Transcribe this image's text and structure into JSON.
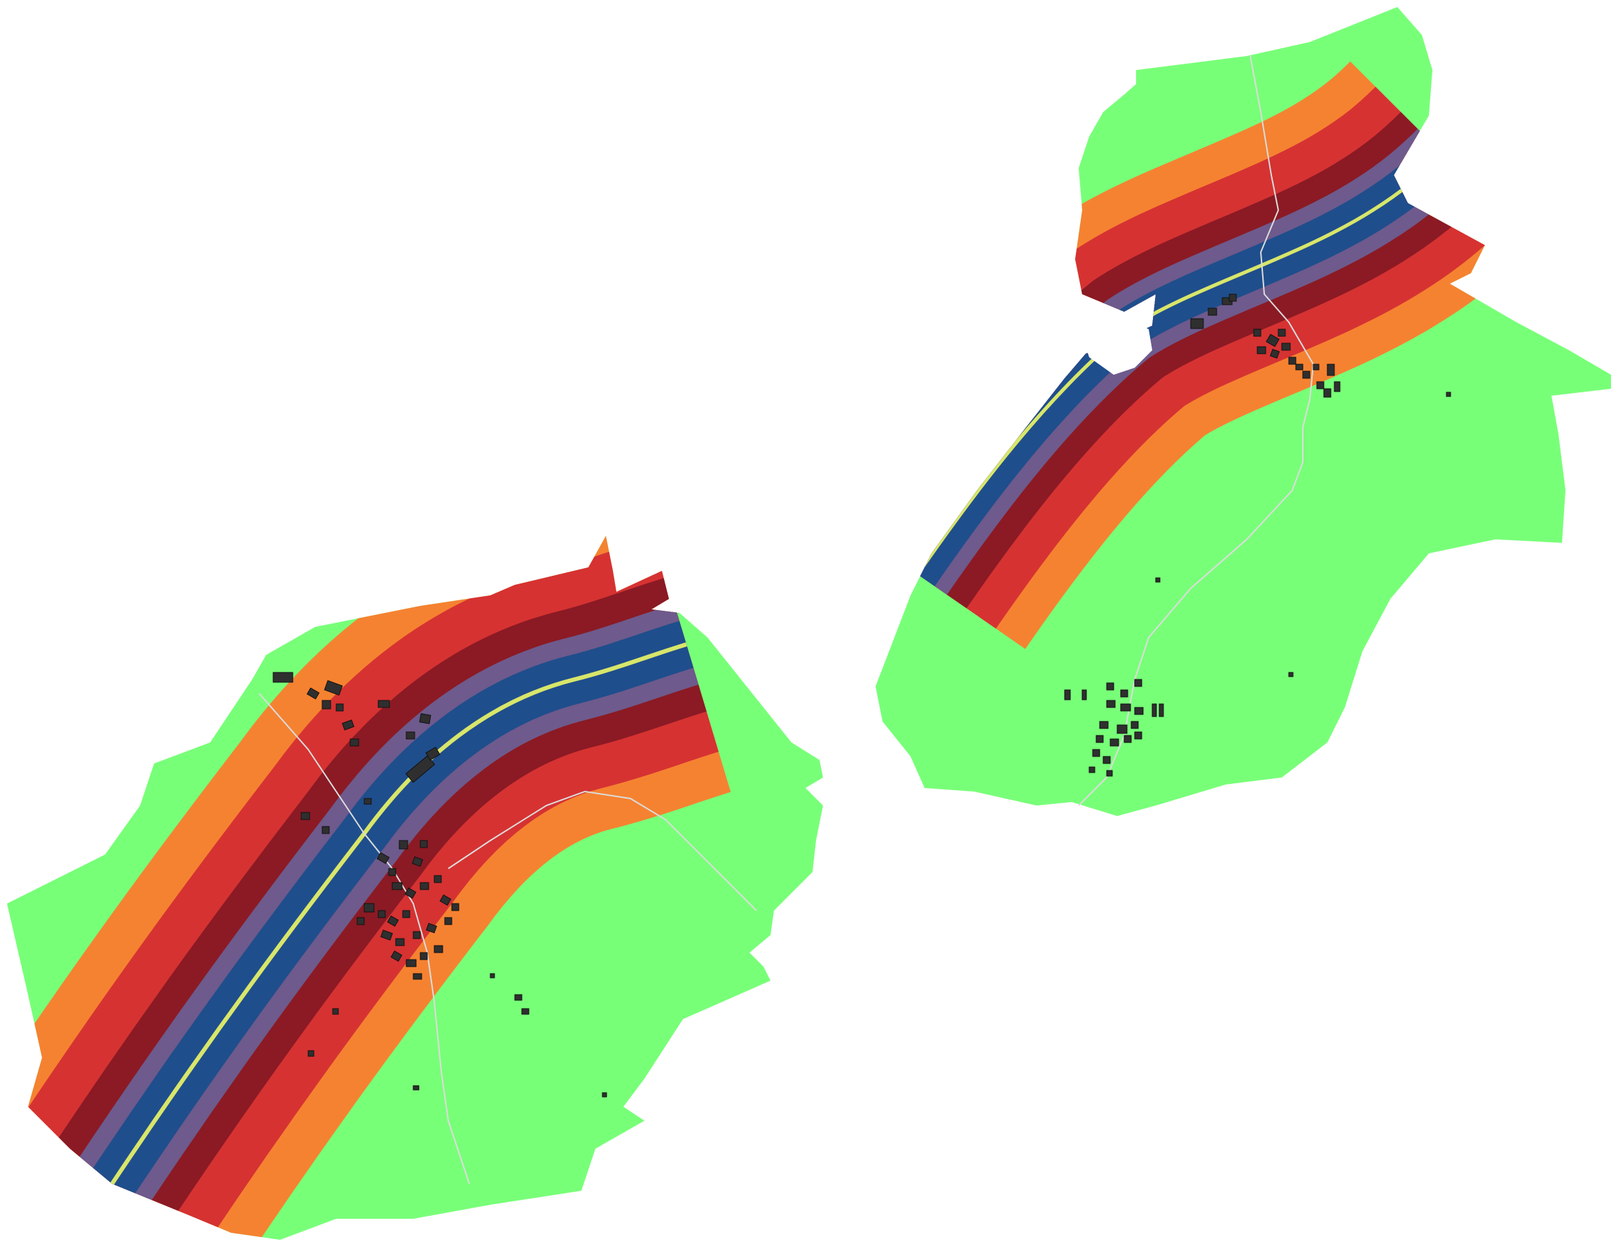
{
  "map": {
    "kind": "road noise exposure map",
    "background": "#ffffff",
    "colors": {
      "land_quiet": "#78ff78",
      "band_outer": "#f58231",
      "band_mid": "#d63232",
      "band_inner": "#8b1a24",
      "band_core": "#6e5a8c",
      "band_road": "#1f4e8c",
      "road_centerline": "#d8e66a",
      "buildings": "#2f2f2f",
      "minor_roads": "#dcdcdc"
    },
    "legend": [],
    "labels": []
  }
}
